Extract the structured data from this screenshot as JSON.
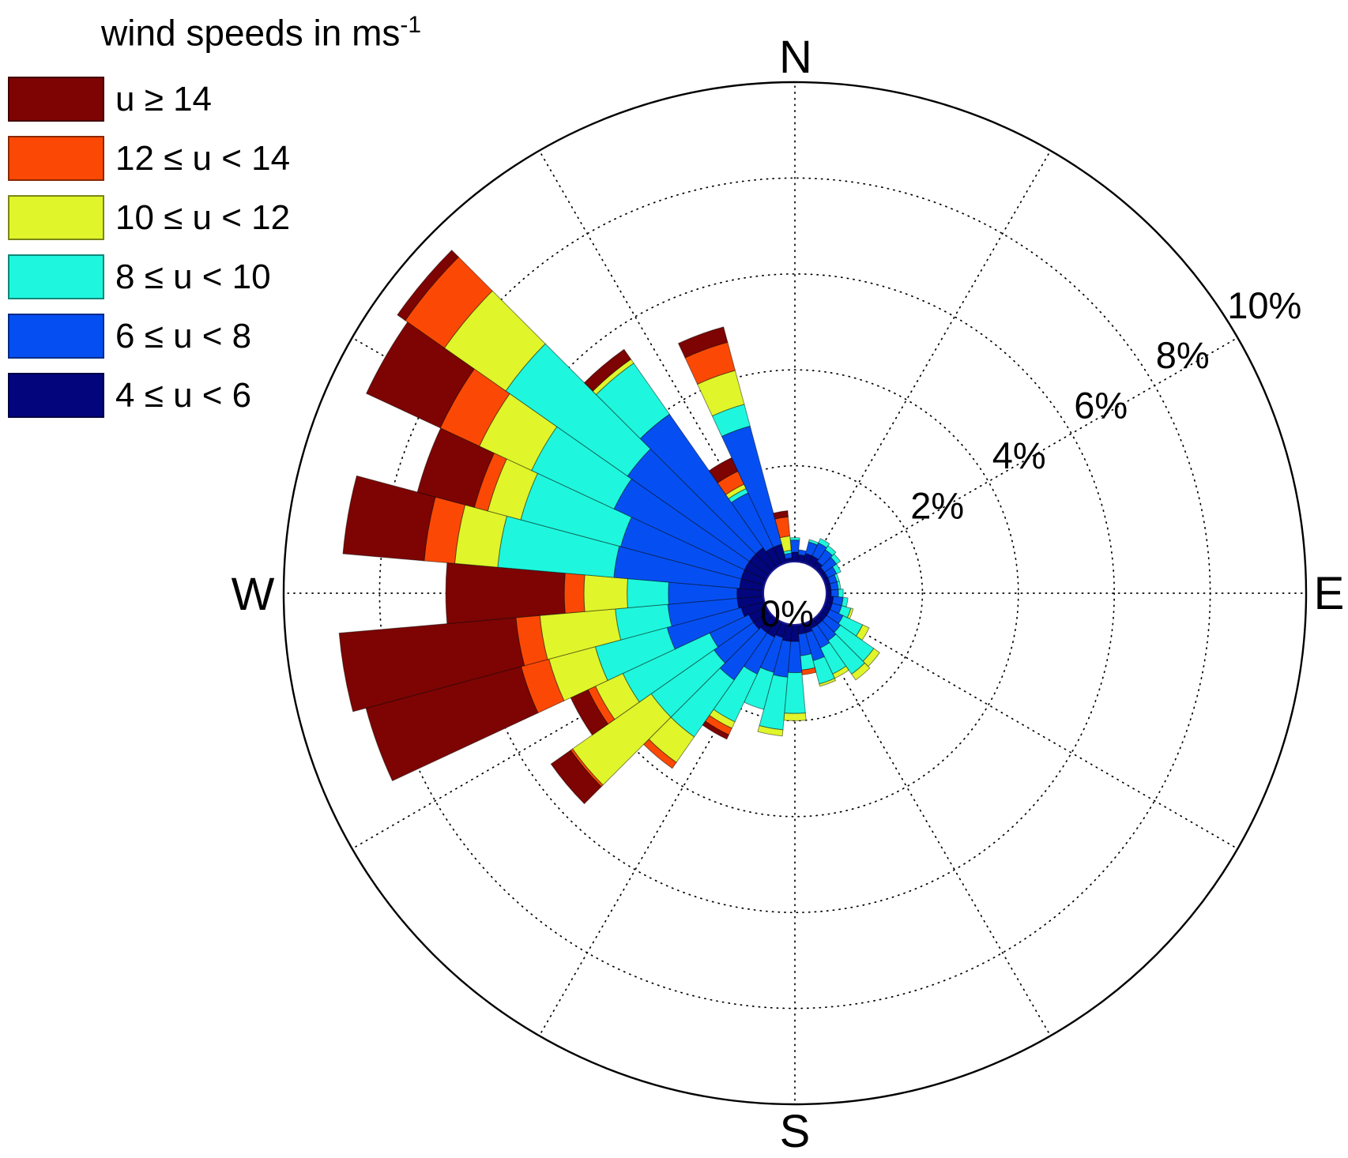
{
  "legend": {
    "title_main": "wind speeds in ms",
    "title_sup": "-1",
    "items": [
      {
        "label": "u ≥ 14",
        "color": "#7d0403"
      },
      {
        "label": "12 ≤ u < 14",
        "color": "#fb4905"
      },
      {
        "label": "10 ≤ u < 12",
        "color": "#e0f52a"
      },
      {
        "label": "8 ≤ u < 10",
        "color": "#1ef7dd"
      },
      {
        "label": "6 ≤ u < 8",
        "color": "#054ff2"
      },
      {
        "label": "4 ≤ u < 6",
        "color": "#02057c"
      }
    ]
  },
  "chart_data": {
    "type": "wind-rose stacked polar bar",
    "units": "percent frequency of occurrence",
    "title": "wind speeds in ms-1",
    "compass": {
      "n": "N",
      "e": "E",
      "s": "S",
      "w": "W"
    },
    "ring_ticks_pct": [
      0,
      2,
      4,
      6,
      8,
      10
    ],
    "ring_labels": [
      "0%",
      "2%",
      "4%",
      "6%",
      "8%",
      "10%"
    ],
    "radial_max_pct": 10,
    "grid": "dotted rings every 2%, dotted spokes every 30 degrees",
    "legend_position": "top-left",
    "direction_bin_width_deg": 10,
    "directions_deg": [
      0,
      10,
      20,
      30,
      40,
      50,
      60,
      70,
      80,
      90,
      100,
      110,
      120,
      130,
      140,
      150,
      160,
      170,
      180,
      190,
      200,
      210,
      220,
      230,
      240,
      250,
      260,
      270,
      280,
      290,
      300,
      310,
      320,
      330,
      340,
      350
    ],
    "series": [
      {
        "name": "4 ≤ u < 6",
        "color": "#02057c",
        "values": [
          0.2,
          0.15,
          0.2,
          0.2,
          0.15,
          0.1,
          0.1,
          0.1,
          0.1,
          0.1,
          0.15,
          0.15,
          0.15,
          0.15,
          0.15,
          0.15,
          0.2,
          0.2,
          0.35,
          0.35,
          0.3,
          0.35,
          0.35,
          0.4,
          0.4,
          0.5,
          0.55,
          0.55,
          0.5,
          0.5,
          0.5,
          0.5,
          0.5,
          0.4,
          0.4,
          0.08
        ]
      },
      {
        "name": "6 ≤ u < 8",
        "color": "#054ff2",
        "values": [
          0.25,
          0.1,
          0.25,
          0.3,
          0.3,
          0.3,
          0.2,
          0.15,
          0.15,
          0.15,
          0.2,
          0.2,
          0.3,
          0.35,
          0.4,
          0.45,
          0.6,
          0.45,
          0.65,
          0.75,
          0.75,
          0.85,
          1.2,
          1.0,
          0.9,
          1.6,
          1.45,
          1.43,
          2.63,
          2.6,
          3.0,
          3.1,
          3.4,
          1.25,
          2.55,
          0.1
        ]
      },
      {
        "name": "8 ≤ u < 10",
        "color": "#1ef7dd",
        "values": [
          0.05,
          0,
          0.05,
          0.1,
          0.1,
          0.1,
          0.1,
          0.05,
          0.05,
          0.1,
          0.1,
          0.2,
          0.45,
          0.85,
          0.85,
          0.6,
          0.5,
          0.3,
          0.85,
          1.1,
          0.8,
          1.1,
          1.45,
          1.6,
          2.0,
          1.55,
          1.1,
          0.86,
          2.43,
          2.16,
          1.9,
          3.1,
          1.3,
          0.1,
          0.47,
          0.06
        ]
      },
      {
        "name": "10 ≤ u < 12",
        "color": "#e0f52a",
        "values": [
          0,
          0,
          0,
          0,
          0,
          0,
          0,
          0,
          0,
          0,
          0,
          0.05,
          0.15,
          0.15,
          0.15,
          0.1,
          0.05,
          0,
          0.15,
          0.13,
          0,
          0.15,
          0.65,
          2.0,
          0.63,
          1.0,
          1.58,
          0.9,
          0.9,
          0.71,
          1.2,
          1.56,
          0.1,
          0.1,
          0.73,
          0.3
        ]
      },
      {
        "name": "12 ≤ u < 14",
        "color": "#fb4905",
        "values": [
          0,
          0,
          0,
          0,
          0,
          0,
          0,
          0,
          0,
          0,
          0,
          0,
          0,
          0,
          0,
          0,
          0,
          0.1,
          0,
          0,
          0,
          0.15,
          0.15,
          0.05,
          0.17,
          0.6,
          0.5,
          0.41,
          0.64,
          0.29,
          0.9,
          1.0,
          0,
          0.3,
          0.61,
          0.4
        ]
      },
      {
        "name": "u ≥ 14",
        "color": "#7d0403",
        "values": [
          0,
          0,
          0,
          0,
          0,
          0,
          0,
          0,
          0,
          0,
          0,
          0,
          0,
          0,
          0,
          0,
          0,
          0,
          0,
          0,
          0,
          0.1,
          0,
          0.5,
          0.4,
          3.35,
          3.7,
          2.47,
          1.7,
          1.23,
          1.7,
          0.2,
          0.25,
          0.31,
          0.33,
          0.13
        ]
      }
    ]
  }
}
